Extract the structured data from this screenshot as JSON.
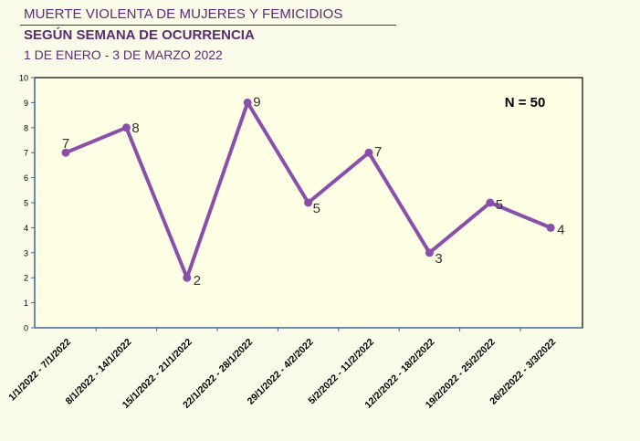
{
  "header": {
    "title": "MUERTE VIOLENTA DE MUJERES Y FEMICIDIOS",
    "subtitle": "SEGÚN SEMANA DE OCURRENCIA",
    "date_range": "1  DE ENERO - 3 DE MARZO 2022"
  },
  "colors": {
    "background": "#fafbe8",
    "plot_background": "#ffffe6",
    "series_line": "#8a4fab",
    "header_text": "#5b2c6f",
    "axis": "#3b6aa0"
  },
  "chart_data": {
    "type": "line",
    "title": "",
    "xlabel": "",
    "ylabel": "",
    "annotation": "N = 50",
    "ylim": [
      0,
      10
    ],
    "yticks": [
      0,
      1,
      2,
      3,
      4,
      5,
      6,
      7,
      8,
      9,
      10
    ],
    "grid": false,
    "legend": "none",
    "categories": [
      "1/1/2022 - 7/1/2022",
      "8/1/2022 - 14/1/2022",
      "15/1/2022 - 21/1/2022",
      "22/1/2022 - 28/1/2022",
      "29/1/2022 - 4/2/2022",
      "5/2/2022 - 11/2/2022",
      "12/2/2022 - 18/2/2022",
      "19/2/2022 - 25/2/2022",
      "26/2/2022 - 3/3/2022"
    ],
    "values": [
      7,
      8,
      2,
      9,
      5,
      7,
      3,
      5,
      4
    ]
  }
}
